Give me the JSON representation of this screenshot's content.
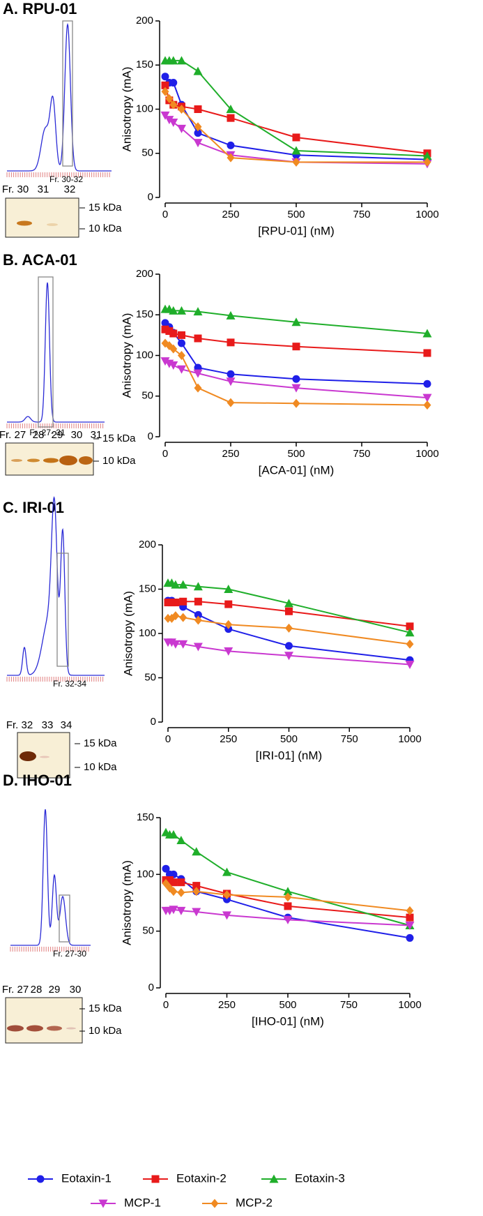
{
  "chart_data": [
    {
      "type": "scatter",
      "title": "A. RPU-01",
      "xlabel": "[RPU-01] (nM)",
      "ylabel": "Anisotropy (mA)",
      "x": [
        0,
        15.6,
        31.3,
        62.5,
        125,
        250,
        500,
        1000
      ],
      "xlim": [
        0,
        1000
      ],
      "ylim": [
        0,
        200
      ],
      "xticks": [
        0,
        250,
        500,
        750,
        1000
      ],
      "yticks": [
        0,
        50,
        100,
        150,
        200
      ],
      "series": [
        {
          "name": "Eotaxin-1",
          "color": "#1f1fe8",
          "marker": "circle",
          "values": [
            137,
            130,
            130,
            105,
            73,
            59,
            48,
            43
          ]
        },
        {
          "name": "Eotaxin-2",
          "color": "#e81a1a",
          "marker": "square",
          "values": [
            127,
            110,
            105,
            103,
            100,
            90,
            68,
            50
          ]
        },
        {
          "name": "Eotaxin-3",
          "color": "#1fae2a",
          "marker": "triangle",
          "values": [
            155,
            155,
            155,
            155,
            143,
            100,
            53,
            47
          ]
        },
        {
          "name": "MCP-1",
          "color": "#c938d0",
          "marker": "triangle-down",
          "values": [
            93,
            88,
            85,
            78,
            62,
            48,
            40,
            38
          ]
        },
        {
          "name": "MCP-2",
          "color": "#f08a22",
          "marker": "diamond",
          "values": [
            120,
            112,
            105,
            100,
            80,
            45,
            40,
            40
          ]
        }
      ]
    },
    {
      "type": "scatter",
      "title": "B. ACA-01",
      "xlabel": "[ACA-01] (nM)",
      "ylabel": "Anisotropy (mA)",
      "x": [
        0,
        15.6,
        31.3,
        62.5,
        125,
        250,
        500,
        1000
      ],
      "xlim": [
        0,
        1000
      ],
      "ylim": [
        0,
        200
      ],
      "xticks": [
        0,
        250,
        500,
        750,
        1000
      ],
      "yticks": [
        0,
        50,
        100,
        150,
        200
      ],
      "series": [
        {
          "color": "#1f1fe8",
          "values": [
            140,
            135,
            128,
            115,
            85,
            77,
            71,
            65
          ]
        },
        {
          "color": "#e81a1a",
          "values": [
            132,
            130,
            127,
            125,
            121,
            116,
            111,
            103
          ]
        },
        {
          "color": "#1fae2a",
          "values": [
            157,
            157,
            155,
            155,
            154,
            149,
            141,
            127
          ]
        },
        {
          "color": "#c938d0",
          "values": [
            93,
            90,
            88,
            83,
            78,
            68,
            60,
            48
          ]
        },
        {
          "color": "#f08a22",
          "values": [
            115,
            112,
            108,
            100,
            60,
            42,
            41,
            39
          ]
        }
      ]
    },
    {
      "type": "scatter",
      "title": "C. IRI-01",
      "xlabel": "[IRI-01] (nM)",
      "ylabel": "Anisotropy (mA)",
      "x": [
        0,
        15.6,
        31.3,
        62.5,
        125,
        250,
        500,
        1000
      ],
      "xlim": [
        0,
        1000
      ],
      "ylim": [
        0,
        200
      ],
      "xticks": [
        0,
        250,
        500,
        750,
        1000
      ],
      "yticks": [
        0,
        50,
        100,
        150,
        200
      ],
      "series": [
        {
          "color": "#1f1fe8",
          "values": [
            137,
            137,
            135,
            130,
            121,
            105,
            86,
            70
          ]
        },
        {
          "color": "#e81a1a",
          "values": [
            135,
            135,
            135,
            136,
            136,
            133,
            125,
            108
          ]
        },
        {
          "color": "#1fae2a",
          "values": [
            157,
            157,
            155,
            155,
            153,
            150,
            134,
            101
          ]
        },
        {
          "color": "#c938d0",
          "values": [
            90,
            90,
            88,
            88,
            85,
            80,
            75,
            65
          ]
        },
        {
          "color": "#f08a22",
          "values": [
            117,
            117,
            120,
            118,
            115,
            110,
            106,
            88
          ]
        }
      ]
    },
    {
      "type": "scatter",
      "title": "D. IHO-01",
      "xlabel": "[IHO-01] (nM)",
      "ylabel": "Anisotropy (mA)",
      "x": [
        0,
        15.6,
        31.3,
        62.5,
        125,
        250,
        500,
        1000
      ],
      "xlim": [
        0,
        1000
      ],
      "ylim": [
        0,
        150
      ],
      "xticks": [
        0,
        250,
        500,
        750,
        1000
      ],
      "yticks": [
        0,
        50,
        100,
        150
      ],
      "series": [
        {
          "color": "#1f1fe8",
          "values": [
            105,
            100,
            100,
            96,
            85,
            78,
            62,
            44
          ]
        },
        {
          "color": "#e81a1a",
          "values": [
            95,
            95,
            93,
            93,
            90,
            83,
            72,
            62
          ]
        },
        {
          "color": "#1fae2a",
          "values": [
            137,
            135,
            135,
            130,
            120,
            102,
            85,
            55
          ]
        },
        {
          "color": "#c938d0",
          "values": [
            68,
            68,
            69,
            68,
            67,
            64,
            60,
            55
          ]
        },
        {
          "color": "#f08a22",
          "values": [
            92,
            88,
            85,
            84,
            85,
            82,
            80,
            68
          ]
        }
      ]
    }
  ],
  "panels": [
    {
      "fraction_range": "Fr. 30-32",
      "lanes": [
        "Fr. 30",
        "31",
        "32"
      ],
      "markers": [
        "15 kDa",
        "10 kDa"
      ]
    },
    {
      "fraction_range": "Fr. 27- 31",
      "lanes": [
        "Fr. 27",
        "28",
        "29",
        "30",
        "31"
      ],
      "markers": [
        "15 kDa",
        "10 kDa"
      ]
    },
    {
      "fraction_range": "Fr. 32-34",
      "lanes": [
        "Fr. 32",
        "33",
        "34"
      ],
      "markers": [
        "15 kDa",
        "10 kDa"
      ]
    },
    {
      "fraction_range": "Fr. 27-30",
      "lanes": [
        "Fr. 27",
        "28",
        "29",
        "30"
      ],
      "markers": [
        "15 kDa",
        "10 kDa"
      ]
    }
  ]
}
